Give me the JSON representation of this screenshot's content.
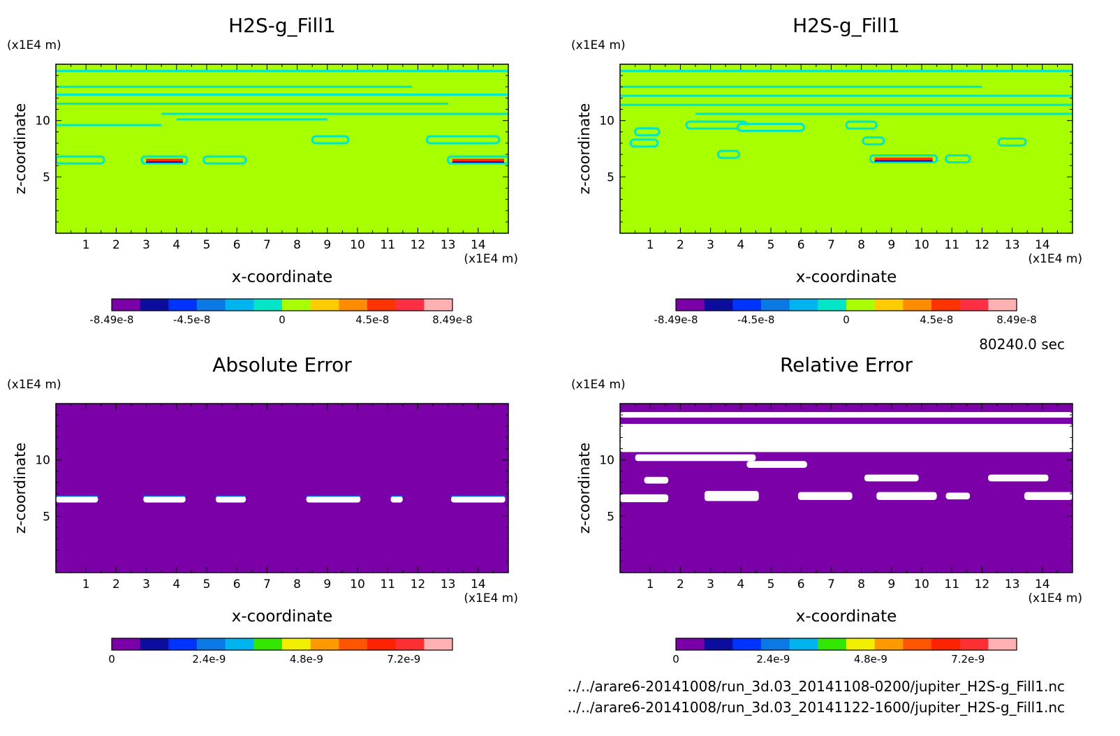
{
  "time_label": "80240.0 sec",
  "files": [
    "../../arare6-20141008/run_3d.03_20141108-0200/jupiter_H2S-g_Fill1.nc",
    "../../arare6-20141008/run_3d.03_20141122-1600/jupiter_H2S-g_Fill1.nc"
  ],
  "chart_data": [
    {
      "type": "heatmap",
      "title": "H2S-g_Fill1",
      "xlabel": "x-coordinate",
      "ylabel": "z-coordinate",
      "x_unit": "(x1E4 m)",
      "y_unit": "(x1E4 m)",
      "xlim": [
        0,
        15
      ],
      "ylim": [
        0,
        15
      ],
      "x_ticks": [
        "1",
        "2",
        "3",
        "4",
        "5",
        "6",
        "7",
        "8",
        "9",
        "10",
        "11",
        "12",
        "13",
        "14"
      ],
      "y_ticks": [
        "5",
        "10"
      ],
      "background_value": 0,
      "colorbar": {
        "colors": [
          "#7b00a8",
          "#0c0c9e",
          "#0033ff",
          "#0a79e6",
          "#00b4f0",
          "#00e6c8",
          "#a8ff00",
          "#ffcc00",
          "#ff8c00",
          "#ff3300",
          "#ff3044",
          "#ffb0b0"
        ],
        "tick_labels": [
          "-8.49e-8",
          "-4.5e-8",
          "0",
          "4.5e-8",
          "8.49e-8"
        ],
        "range": [
          -8.49e-08,
          8.49e-08
        ]
      },
      "features": [
        {
          "kind": "band",
          "z": 14.4,
          "x": [
            0,
            15
          ]
        },
        {
          "kind": "band",
          "z": 13.0,
          "x": [
            0,
            11.8
          ]
        },
        {
          "kind": "band",
          "z": 12.3,
          "x": [
            0,
            15
          ]
        },
        {
          "kind": "band",
          "z": 11.5,
          "x": [
            0,
            13
          ]
        },
        {
          "kind": "band",
          "z": 10.6,
          "x": [
            3.5,
            15
          ]
        },
        {
          "kind": "band",
          "z": 9.6,
          "x": [
            0,
            3.5
          ]
        },
        {
          "kind": "band",
          "z": 10.1,
          "x": [
            4,
            9
          ]
        },
        {
          "kind": "blob",
          "x": 9.1,
          "z": 8.3,
          "w": 1.2
        },
        {
          "kind": "blob",
          "x": 13.5,
          "z": 8.3,
          "w": 2.4
        },
        {
          "kind": "blob",
          "x": 0.8,
          "z": 6.5,
          "w": 1.6
        },
        {
          "kind": "hot",
          "x": 3.6,
          "z": 6.5,
          "w": 1.5
        },
        {
          "kind": "blob",
          "x": 5.6,
          "z": 6.5,
          "w": 1.4
        },
        {
          "kind": "hot",
          "x": 14.0,
          "z": 6.5,
          "w": 2.0
        }
      ]
    },
    {
      "type": "heatmap",
      "title": "H2S-g_Fill1",
      "xlabel": "x-coordinate",
      "ylabel": "z-coordinate",
      "x_unit": "(x1E4 m)",
      "y_unit": "(x1E4 m)",
      "xlim": [
        0,
        15
      ],
      "ylim": [
        0,
        15
      ],
      "x_ticks": [
        "1",
        "2",
        "3",
        "4",
        "5",
        "6",
        "7",
        "8",
        "9",
        "10",
        "11",
        "12",
        "13",
        "14"
      ],
      "y_ticks": [
        "5",
        "10"
      ],
      "background_value": 0,
      "colorbar": {
        "colors": [
          "#7b00a8",
          "#0c0c9e",
          "#0033ff",
          "#0a79e6",
          "#00b4f0",
          "#00e6c8",
          "#a8ff00",
          "#ffcc00",
          "#ff8c00",
          "#ff3300",
          "#ff3044",
          "#ffb0b0"
        ],
        "tick_labels": [
          "-8.49e-8",
          "-4.5e-8",
          "0",
          "4.5e-8",
          "8.49e-8"
        ],
        "range": [
          -8.49e-08,
          8.49e-08
        ]
      },
      "features": [
        {
          "kind": "band",
          "z": 14.4,
          "x": [
            0,
            15
          ]
        },
        {
          "kind": "band",
          "z": 13.0,
          "x": [
            0,
            12
          ]
        },
        {
          "kind": "band",
          "z": 12.2,
          "x": [
            0,
            15
          ]
        },
        {
          "kind": "band",
          "z": 11.4,
          "x": [
            0,
            15
          ]
        },
        {
          "kind": "band",
          "z": 10.6,
          "x": [
            2.5,
            15
          ]
        },
        {
          "kind": "blob",
          "x": 3.2,
          "z": 9.6,
          "w": 2.0
        },
        {
          "kind": "blob",
          "x": 5.0,
          "z": 9.4,
          "w": 2.2
        },
        {
          "kind": "blob",
          "x": 0.9,
          "z": 9.0,
          "w": 0.8
        },
        {
          "kind": "blob",
          "x": 0.8,
          "z": 8.0,
          "w": 0.9
        },
        {
          "kind": "blob",
          "x": 8.0,
          "z": 9.6,
          "w": 1.0
        },
        {
          "kind": "blob",
          "x": 8.4,
          "z": 8.2,
          "w": 0.7
        },
        {
          "kind": "blob",
          "x": 13.0,
          "z": 8.1,
          "w": 0.9
        },
        {
          "kind": "blob",
          "x": 3.6,
          "z": 7.0,
          "w": 0.7
        },
        {
          "kind": "hot",
          "x": 9.4,
          "z": 6.6,
          "w": 2.2
        },
        {
          "kind": "blob",
          "x": 11.2,
          "z": 6.6,
          "w": 0.8
        }
      ]
    },
    {
      "type": "heatmap",
      "title": "Absolute Error",
      "xlabel": "x-coordinate",
      "ylabel": "z-coordinate",
      "x_unit": "(x1E4 m)",
      "y_unit": "(x1E4 m)",
      "xlim": [
        0,
        15
      ],
      "ylim": [
        0,
        15
      ],
      "x_ticks": [
        "1",
        "2",
        "3",
        "4",
        "5",
        "6",
        "7",
        "8",
        "9",
        "10",
        "11",
        "12",
        "13",
        "14"
      ],
      "y_ticks": [
        "5",
        "10"
      ],
      "background_value": 0,
      "colorbar": {
        "colors": [
          "#7b00a8",
          "#0c0c9e",
          "#0033ff",
          "#0a79e6",
          "#00b4f0",
          "#33e600",
          "#f0f000",
          "#ff9900",
          "#ff5500",
          "#ff2200",
          "#ff3033",
          "#ffb0b0"
        ],
        "tick_labels": [
          "0",
          "2.4e-9",
          "4.8e-9",
          "7.2e-9"
        ],
        "range": [
          0,
          8.4e-09
        ]
      },
      "features": [
        {
          "kind": "white",
          "x": 0.7,
          "z": 6.5,
          "w": 1.4
        },
        {
          "kind": "white",
          "x": 3.6,
          "z": 6.5,
          "w": 1.4
        },
        {
          "kind": "white",
          "x": 5.8,
          "z": 6.5,
          "w": 1.0
        },
        {
          "kind": "white",
          "x": 9.2,
          "z": 6.5,
          "w": 1.8
        },
        {
          "kind": "white",
          "x": 11.3,
          "z": 6.5,
          "w": 0.4
        },
        {
          "kind": "white",
          "x": 14.0,
          "z": 6.5,
          "w": 1.8
        }
      ]
    },
    {
      "type": "heatmap",
      "title": "Relative Error",
      "xlabel": "x-coordinate",
      "ylabel": "z-coordinate",
      "x_unit": "(x1E4 m)",
      "y_unit": "(x1E4 m)",
      "xlim": [
        0,
        15
      ],
      "ylim": [
        0,
        15
      ],
      "x_ticks": [
        "1",
        "2",
        "3",
        "4",
        "5",
        "6",
        "7",
        "8",
        "9",
        "10",
        "11",
        "12",
        "13",
        "14"
      ],
      "y_ticks": [
        "5",
        "10"
      ],
      "background_value": 0,
      "colorbar": {
        "colors": [
          "#7b00a8",
          "#0c0c9e",
          "#0033ff",
          "#0a79e6",
          "#00b4f0",
          "#33e600",
          "#f0f000",
          "#ff9900",
          "#ff5500",
          "#ff2200",
          "#ff3033",
          "#ffb0b0"
        ],
        "tick_labels": [
          "0",
          "2.4e-9",
          "4.8e-9",
          "7.2e-9"
        ],
        "range": [
          0,
          8.4e-09
        ]
      },
      "features": [
        {
          "kind": "white",
          "x": 7.5,
          "z": 14.0,
          "w": 15.0,
          "h": 0.5
        },
        {
          "kind": "white",
          "x": 7.5,
          "z": 12.4,
          "w": 15.0,
          "h": 1.6
        },
        {
          "kind": "white",
          "x": 7.5,
          "z": 11.2,
          "w": 15.0,
          "h": 1.0
        },
        {
          "kind": "white",
          "x": 2.5,
          "z": 10.2,
          "w": 4.0,
          "h": 0.6
        },
        {
          "kind": "white",
          "x": 5.2,
          "z": 9.6,
          "w": 2.0,
          "h": 0.6
        },
        {
          "kind": "white",
          "x": 1.2,
          "z": 8.2,
          "w": 0.8,
          "h": 0.6
        },
        {
          "kind": "white",
          "x": 9.0,
          "z": 8.4,
          "w": 1.8,
          "h": 0.6
        },
        {
          "kind": "white",
          "x": 13.2,
          "z": 8.4,
          "w": 2.0,
          "h": 0.6
        },
        {
          "kind": "white",
          "x": 0.8,
          "z": 6.6,
          "w": 1.6,
          "h": 0.7
        },
        {
          "kind": "white",
          "x": 3.7,
          "z": 6.8,
          "w": 1.8,
          "h": 0.9
        },
        {
          "kind": "white",
          "x": 6.8,
          "z": 6.8,
          "w": 1.8,
          "h": 0.7
        },
        {
          "kind": "white",
          "x": 9.5,
          "z": 6.8,
          "w": 2.0,
          "h": 0.7
        },
        {
          "kind": "white",
          "x": 11.2,
          "z": 6.8,
          "w": 0.8,
          "h": 0.6
        },
        {
          "kind": "white",
          "x": 14.2,
          "z": 6.8,
          "w": 1.6,
          "h": 0.7
        }
      ]
    }
  ]
}
